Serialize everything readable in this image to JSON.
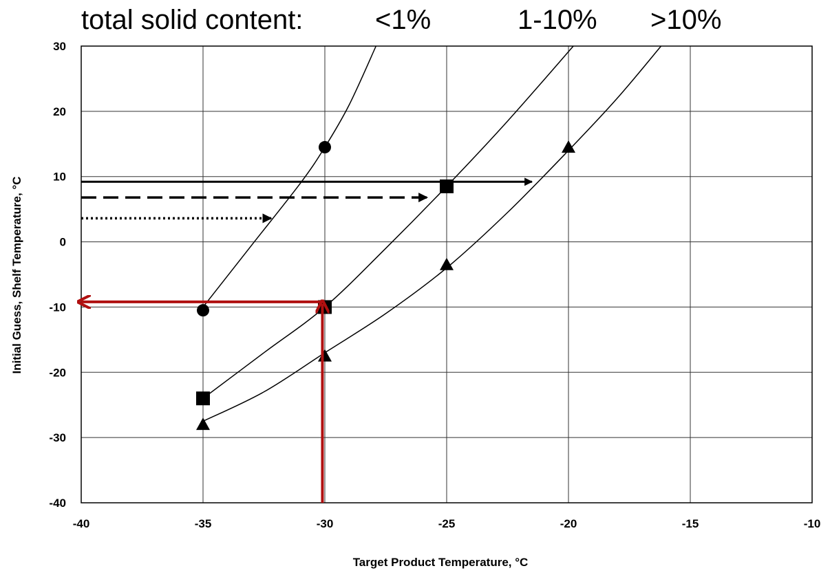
{
  "chart_data": {
    "type": "line",
    "legend": {
      "title": "total solid content:",
      "entries": [
        "<1%",
        "1-10%",
        ">10%"
      ],
      "placement": "top"
    },
    "xlabel": "Target Product Temperature, °C",
    "ylabel": "Initial Guess, Shelf Temperature, °C",
    "xlim": [
      -40,
      -10
    ],
    "ylim": [
      -40,
      30
    ],
    "xticks": [
      -40,
      -35,
      -30,
      -25,
      -20,
      -15,
      -10
    ],
    "yticks": [
      -40,
      -30,
      -20,
      -10,
      0,
      10,
      20,
      30
    ],
    "grid": true,
    "series": [
      {
        "marker": "circle",
        "points": [
          [
            -35,
            -10.5
          ],
          [
            -30,
            14.5
          ]
        ],
        "curve": [
          [
            -35,
            -10
          ],
          [
            -33,
            -0.5
          ],
          [
            -31,
            9
          ],
          [
            -30,
            14.5
          ],
          [
            -29,
            21
          ],
          [
            -27.9,
            30
          ]
        ]
      },
      {
        "marker": "square",
        "points": [
          [
            -35,
            -24
          ],
          [
            -30,
            -10
          ],
          [
            -25,
            8.5
          ]
        ],
        "curve": [
          [
            -35,
            -24
          ],
          [
            -32.5,
            -17
          ],
          [
            -30,
            -10
          ],
          [
            -27.5,
            -1
          ],
          [
            -25,
            8.5
          ],
          [
            -22.5,
            18.5
          ],
          [
            -19.8,
            30
          ]
        ]
      },
      {
        "marker": "triangle",
        "points": [
          [
            -35,
            -28
          ],
          [
            -30,
            -17.5
          ],
          [
            -25,
            -3.5
          ],
          [
            -20,
            14.5
          ]
        ],
        "curve": [
          [
            -35,
            -27.5
          ],
          [
            -32.5,
            -23
          ],
          [
            -30,
            -17
          ],
          [
            -27.5,
            -11
          ],
          [
            -25,
            -4
          ],
          [
            -22.5,
            4.5
          ],
          [
            -20,
            14
          ],
          [
            -18,
            22
          ],
          [
            -16.2,
            30
          ]
        ]
      }
    ],
    "annotations": [
      {
        "style": "solid",
        "color": "#000000",
        "from": [
          -40,
          9.2
        ],
        "to": [
          -21.5,
          9.2
        ]
      },
      {
        "style": "dashed",
        "color": "#000000",
        "from": [
          -40,
          6.8
        ],
        "to": [
          -25.8,
          6.8
        ]
      },
      {
        "style": "dotted",
        "color": "#000000",
        "from": [
          -40,
          3.6
        ],
        "to": [
          -32.2,
          3.6
        ]
      },
      {
        "style": "solid",
        "color": "#b01010",
        "from": [
          -30.1,
          -40
        ],
        "to": [
          -30.1,
          -9.5
        ]
      },
      {
        "style": "solid",
        "color": "#b01010",
        "from": [
          -30.1,
          -9.2
        ],
        "to": [
          -40,
          -9.2
        ]
      }
    ]
  }
}
